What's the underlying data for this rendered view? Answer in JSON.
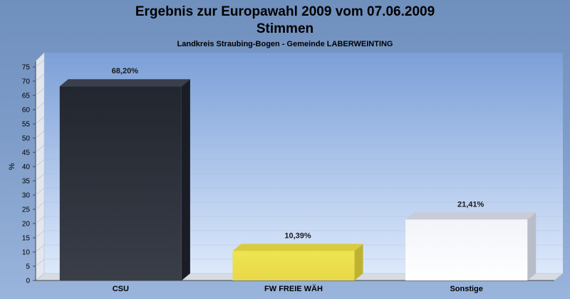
{
  "chart_data": {
    "type": "bar",
    "title": "Ergebnis zur Europawahl 2009 vom 07.06.2009",
    "subtitle": "Stimmen",
    "caption": "Landkreis Straubing-Bogen - Gemeinde LABERWEINTING",
    "ylabel": "%",
    "xlabel": "",
    "ylim": [
      0,
      75
    ],
    "yticks": [
      0,
      5,
      10,
      15,
      20,
      25,
      30,
      35,
      40,
      45,
      50,
      55,
      60,
      65,
      70,
      75
    ],
    "categories": [
      "CSU",
      "FW FREIE WÄH",
      "Sonstige"
    ],
    "values": [
      68.2,
      10.39,
      21.41
    ],
    "value_labels": [
      "68,20%",
      "10,39%",
      "21,41%"
    ],
    "bar_colors": [
      "#2a2f3c",
      "#ece04a",
      "#f4f6fb"
    ],
    "grid": true
  }
}
